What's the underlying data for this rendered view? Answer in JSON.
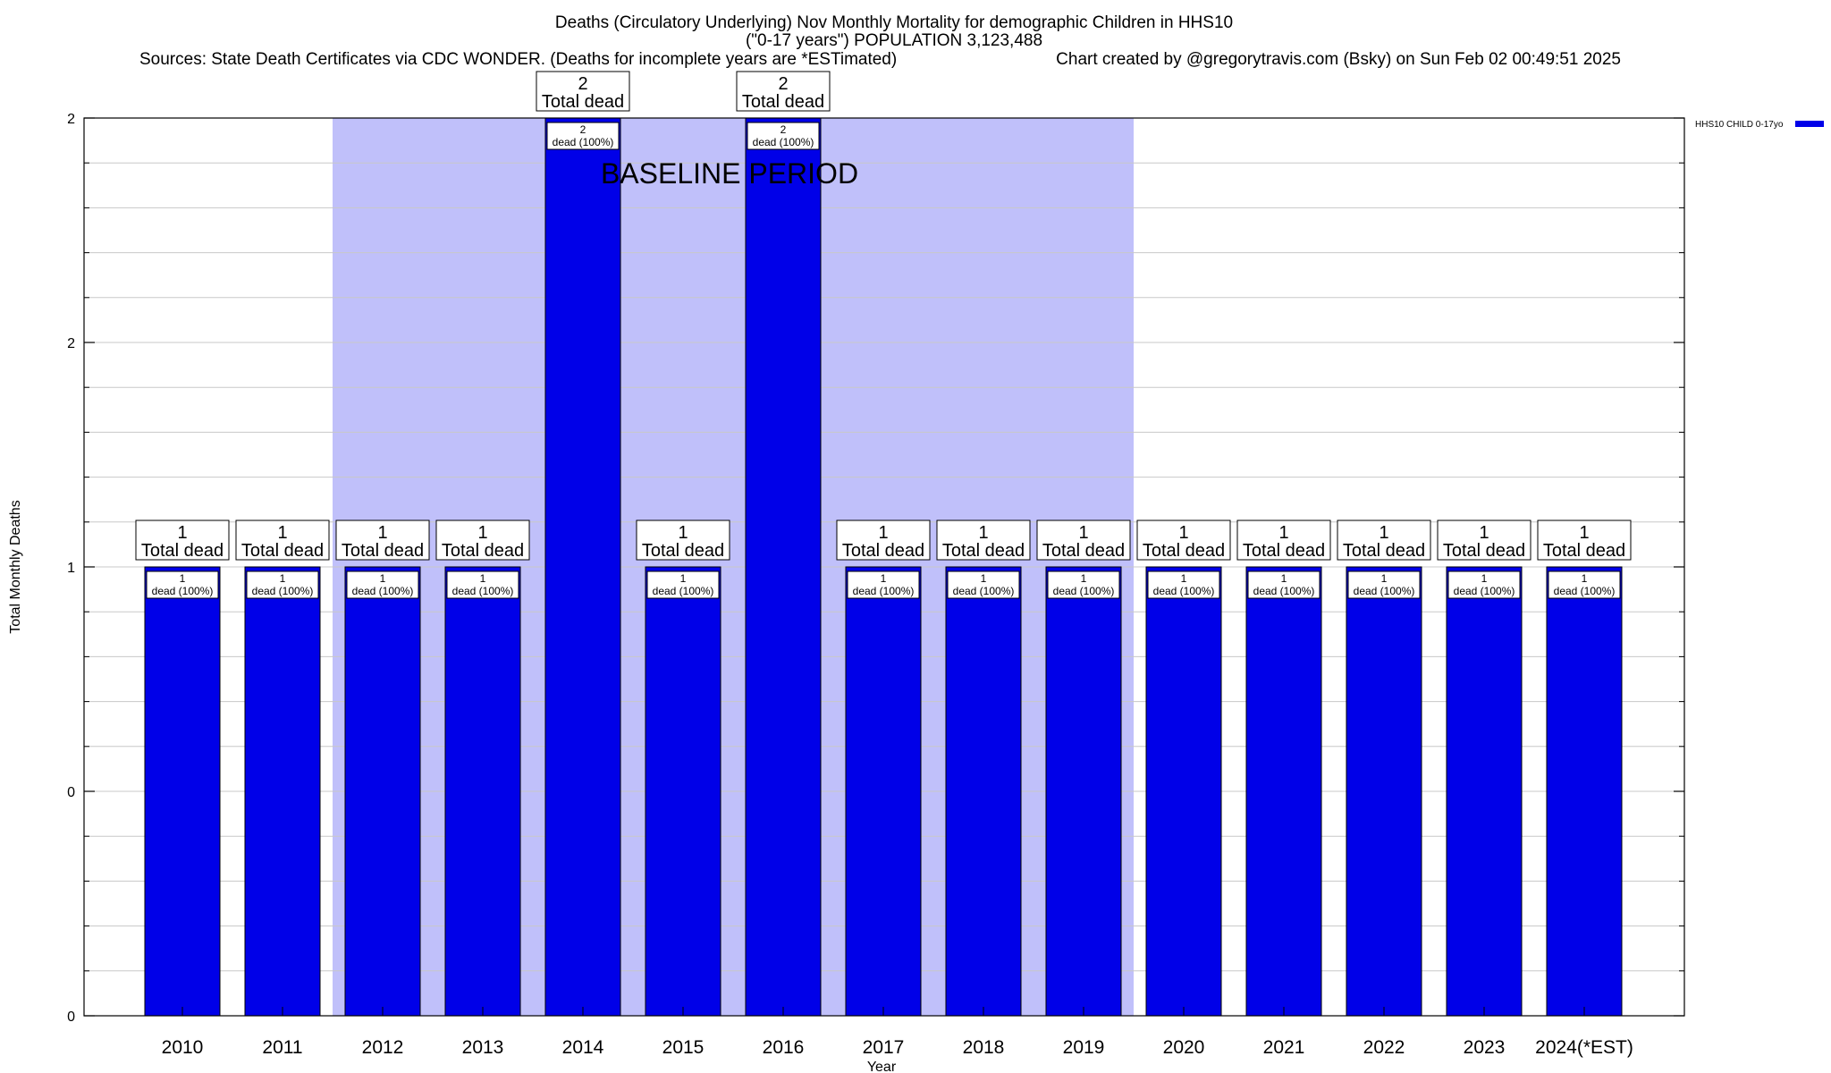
{
  "chart_data": {
    "type": "bar",
    "title_lines": [
      "Deaths (Circulatory Underlying) Nov Monthly Mortality for demographic Children in HHS10",
      "(\"0-17 years\") POPULATION 3,123,488"
    ],
    "source_text": "Sources: State Death Certificates via CDC WONDER. (Deaths for incomplete years are *ESTimated)",
    "credit_text": "Chart created by @gregorytravis.com (Bsky) on Sun Feb 02 00:49:51 2025",
    "xlabel": "Year",
    "ylabel": "Total Monthly Deaths",
    "categories": [
      "2010",
      "2011",
      "2012",
      "2013",
      "2014",
      "2015",
      "2016",
      "2017",
      "2018",
      "2019",
      "2020",
      "2021",
      "2022",
      "2023",
      "2024(*EST)"
    ],
    "series": [
      {
        "name": "HHS10 CHILD 0-17yo",
        "values": [
          1,
          1,
          1,
          1,
          2,
          1,
          2,
          1,
          1,
          1,
          1,
          1,
          1,
          1,
          1
        ]
      }
    ],
    "total_labels": [
      "1\nTotal dead",
      "1\nTotal dead",
      "1\nTotal dead",
      "1\nTotal dead",
      "2\nTotal dead",
      "1\nTotal dead",
      "2\nTotal dead",
      "1\nTotal dead",
      "1\nTotal dead",
      "1\nTotal dead",
      "1\nTotal dead",
      "1\nTotal dead",
      "1\nTotal dead",
      "1\nTotal dead",
      "1\nTotal dead"
    ],
    "inner_labels": [
      "1\ndead (100%)",
      "1\ndead (100%)",
      "1\ndead (100%)",
      "1\ndead (100%)",
      "2\ndead (100%)",
      "1\ndead (100%)",
      "2\ndead (100%)",
      "1\ndead (100%)",
      "1\ndead (100%)",
      "1\ndead (100%)",
      "1\ndead (100%)",
      "1\ndead (100%)",
      "1\ndead (100%)",
      "1\ndead (100%)",
      "1\ndead (100%)"
    ],
    "ylim": [
      0,
      2
    ],
    "ytick_values": [
      0,
      0.5,
      1,
      1.5,
      2
    ],
    "ytick_labels": [
      "0",
      "0",
      "1",
      "2",
      "2"
    ],
    "baseline_label": "BASELINE PERIOD",
    "baseline_range": [
      "2012",
      "2019"
    ],
    "grid": true,
    "legend_position": "top-right",
    "colors": {
      "bar": "#0000e8",
      "baseline": "#c0c0fa",
      "grid": "#c8c8c8",
      "axis": "#000000"
    }
  }
}
